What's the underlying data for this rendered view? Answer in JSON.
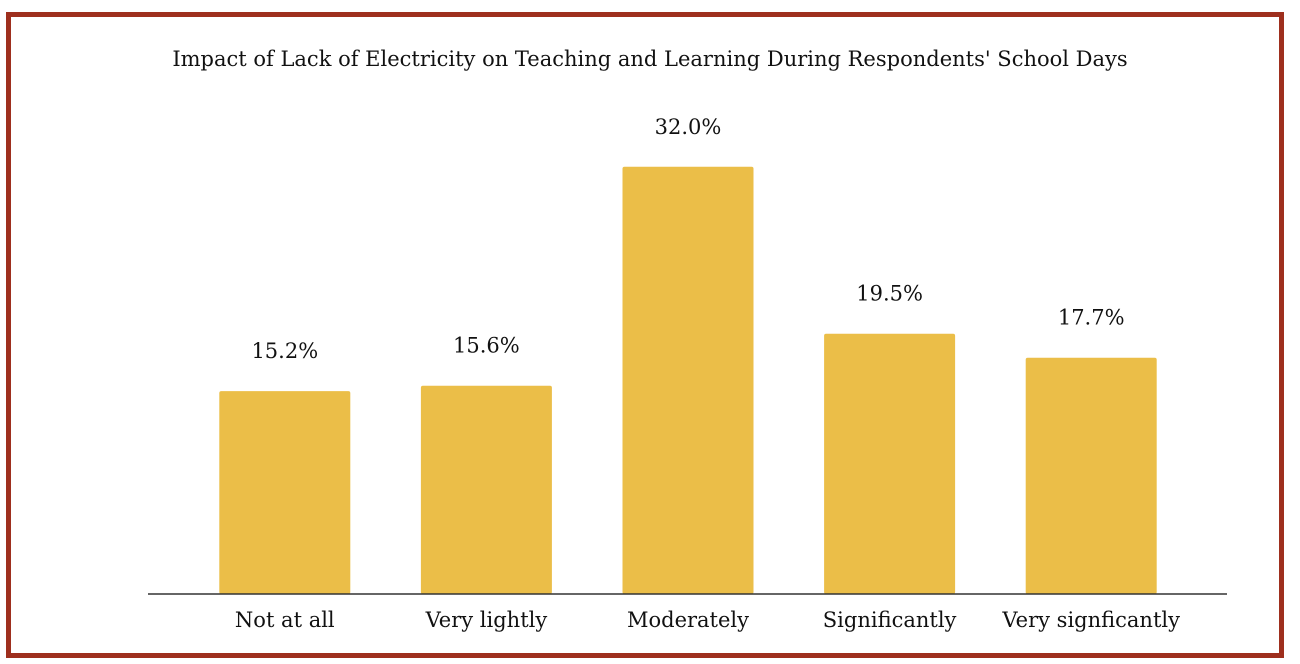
{
  "chart_data": {
    "type": "bar",
    "title": "Impact of Lack of Electricity on Teaching and Learning During Respondents' School Days",
    "xlabel": "",
    "ylabel": "",
    "categories": [
      "Not at all",
      "Very lightly",
      "Moderately",
      "Significantly",
      "Very signficantly"
    ],
    "values": [
      15.2,
      15.6,
      32.0,
      19.5,
      17.7
    ],
    "value_labels": [
      "15.2%",
      "15.6%",
      "32.0%",
      "19.5%",
      "17.7%"
    ],
    "ylim": [
      0,
      40
    ],
    "grid": false,
    "legend": "none"
  },
  "colors": {
    "bar": "#ebbe48",
    "border": "#9e2f1e",
    "axis": "#333333",
    "text": "#111111"
  }
}
